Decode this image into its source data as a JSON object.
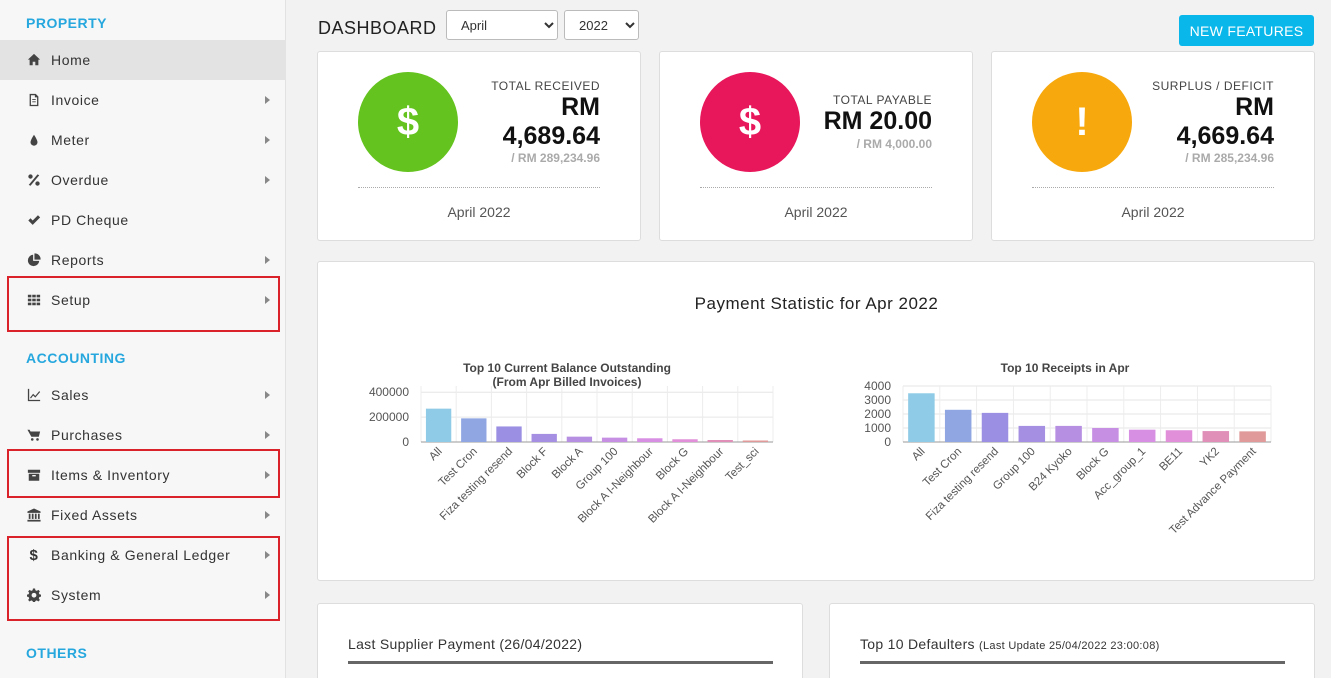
{
  "sidebar": {
    "sections": {
      "property": "PROPERTY",
      "accounting": "ACCOUNTING",
      "others": "OTHERS"
    },
    "items": [
      {
        "label": "Home",
        "icon": "home-icon",
        "active": true,
        "submenu": false
      },
      {
        "label": "Invoice",
        "icon": "file-icon",
        "submenu": true
      },
      {
        "label": "Meter",
        "icon": "drop-icon",
        "submenu": true
      },
      {
        "label": "Overdue",
        "icon": "percent-icon",
        "submenu": true
      },
      {
        "label": "PD Cheque",
        "icon": "check-icon",
        "submenu": false
      },
      {
        "label": "Reports",
        "icon": "pie-chart-icon",
        "submenu": true
      },
      {
        "label": "Setup",
        "icon": "grid-icon",
        "submenu": true
      },
      {
        "label": "Sales",
        "icon": "line-chart-icon",
        "submenu": true
      },
      {
        "label": "Purchases",
        "icon": "cart-icon",
        "submenu": true
      },
      {
        "label": "Items & Inventory",
        "icon": "archive-icon",
        "submenu": true
      },
      {
        "label": "Fixed Assets",
        "icon": "bank-icon",
        "submenu": true
      },
      {
        "label": "Banking & General Ledger",
        "icon": "dollar-icon",
        "submenu": true
      },
      {
        "label": "System",
        "icon": "gear-icon",
        "submenu": true
      }
    ]
  },
  "header": {
    "title": "DASHBOARD",
    "month": "April",
    "year": "2022",
    "new_features": "NEW FEATURES"
  },
  "kpis": [
    {
      "label": "TOTAL RECEIVED",
      "currency": "RM",
      "value": "4,689.64",
      "sub": "/ RM 289,234.96",
      "period": "April 2022",
      "icon": "dollar-icon",
      "color": "#64c31e"
    },
    {
      "label": "TOTAL PAYABLE",
      "value": "RM 20.00",
      "sub": "/ RM 4,000.00",
      "period": "April 2022",
      "icon": "dollar-icon",
      "color": "#e8165a"
    },
    {
      "label": "SURPLUS / DEFICIT",
      "currency": "RM",
      "value": "4,669.64",
      "sub": "/ RM 285,234.96",
      "period": "April 2022",
      "icon": "exclamation-icon",
      "color": "#f7a80d"
    }
  ],
  "stats": {
    "title": "Payment Statistic for Apr 2022"
  },
  "chart_data": [
    {
      "type": "bar",
      "title": [
        "Top 10 Current Balance Outstanding",
        "(From Apr Billed Invoices)"
      ],
      "categories": [
        "All",
        "Test Cron",
        "Fiza testing resend",
        "Block F",
        "Block A",
        "Group 100",
        "Block A I-Neighbour",
        "Block G",
        "Block A I-Neighbour",
        "Test_sci"
      ],
      "values": [
        268000,
        190000,
        125000,
        65000,
        43000,
        35000,
        30000,
        22000,
        16000,
        12000
      ],
      "colors": [
        "#8fcbe6",
        "#8fa6e3",
        "#9a8fe3",
        "#a48fe3",
        "#b68fe3",
        "#c68fe3",
        "#d78fe3",
        "#e08fd8",
        "#e08fb8",
        "#e09a9a"
      ],
      "yticks": [
        "400000",
        "200000",
        "0"
      ],
      "ylim": [
        0,
        450000
      ],
      "xlabel": "",
      "ylabel": "",
      "grid": true
    },
    {
      "type": "bar",
      "title": [
        "Top 10 Receipts in Apr"
      ],
      "categories": [
        "All",
        "Test Cron",
        "Fiza testing resend",
        "Group 100",
        "B24 Kyoko",
        "Block G",
        "Acc_group_1",
        "BE11",
        "YK2",
        "Test Advance Payment"
      ],
      "values": [
        3480,
        2300,
        2080,
        1150,
        1150,
        1000,
        880,
        840,
        780,
        760
      ],
      "colors": [
        "#8fcbe6",
        "#8fa6e3",
        "#9a8fe3",
        "#a48fe3",
        "#b68fe3",
        "#c68fe3",
        "#d78fe3",
        "#e08fd8",
        "#e08fb8",
        "#e09a9a"
      ],
      "yticks": [
        "4000",
        "3000",
        "2000",
        "1000",
        "0"
      ],
      "ylim": [
        0,
        4000
      ],
      "xlabel": "",
      "ylabel": "",
      "grid": true
    }
  ],
  "panels": {
    "supplier": "Last Supplier Payment (26/04/2022)",
    "defaulters": "Top 10 Defaulters",
    "defaulters_note": "(Last Update 25/04/2022 23:00:08)"
  }
}
